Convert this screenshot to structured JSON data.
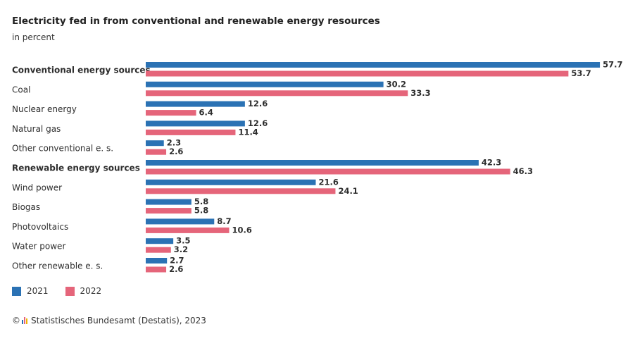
{
  "title": "Electricity fed in from conventional and renewable energy resources",
  "subtitle": "in percent",
  "legend": [
    {
      "label": "2021",
      "color": "#2b72b4"
    },
    {
      "label": "2022",
      "color": "#e5657a"
    }
  ],
  "source": {
    "copyright": "©",
    "text": "Statistisches Bundesamt (Destatis), 2023"
  },
  "chart_data": {
    "type": "bar",
    "orientation": "horizontal",
    "categories": [
      "Conventional energy sources",
      "Coal",
      "Nuclear energy",
      "Natural gas",
      "Other conventional e. s.",
      "Renewable energy sources",
      "Wind power",
      "Biogas",
      "Photovoltaics",
      "Water power",
      "Other renewable e. s."
    ],
    "bold_categories": [
      "Conventional energy sources",
      "Renewable energy sources"
    ],
    "series": [
      {
        "name": "2021",
        "color": "#2b72b4",
        "values": [
          57.7,
          30.2,
          12.6,
          12.6,
          2.3,
          42.3,
          21.6,
          5.8,
          8.7,
          3.5,
          2.7
        ]
      },
      {
        "name": "2022",
        "color": "#e5657a",
        "values": [
          53.7,
          33.3,
          6.4,
          11.4,
          2.6,
          46.3,
          24.1,
          5.8,
          10.6,
          3.2,
          2.6
        ]
      }
    ],
    "xlim": [
      0,
      60
    ],
    "grid": false,
    "legend_position": "bottom-left"
  }
}
